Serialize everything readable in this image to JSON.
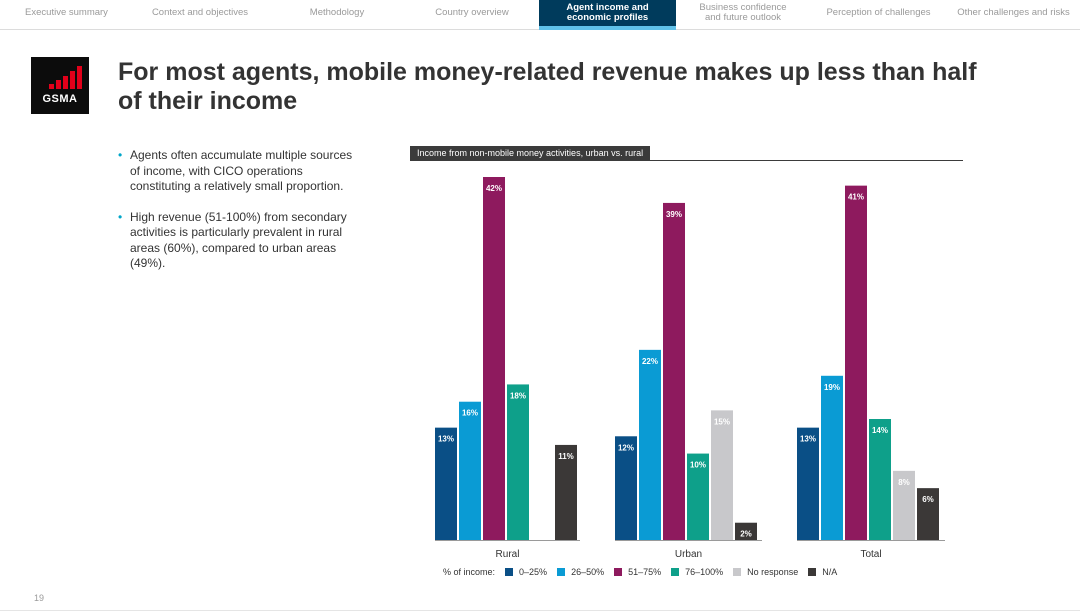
{
  "nav": {
    "tabs": [
      {
        "label": "Executive summary",
        "active": false
      },
      {
        "label": "Context and objectives",
        "active": false
      },
      {
        "label": "Methodology",
        "active": false
      },
      {
        "label": "Country overview",
        "active": false
      },
      {
        "label": "Agent income and\neconomic profiles",
        "active": true
      },
      {
        "label": "Business confidence\nand future outlook",
        "active": false
      },
      {
        "label": "Perception of challenges",
        "active": false
      },
      {
        "label": "Other challenges and risks",
        "active": false
      }
    ]
  },
  "logo": {
    "text": "GSMA",
    "accent_color": "#e2001a"
  },
  "title": "For most agents, mobile money-related revenue makes up less than half of their income",
  "bullets": [
    "Agents often accumulate multiple sources of income, with CICO operations constituting a relatively small proportion.",
    "High revenue (51-100%) from secondary activities is particularly prevalent in rural areas (60%), compared to urban areas (49%)."
  ],
  "chart_data": {
    "type": "bar",
    "title": "Income from non-mobile money activities, urban vs. rural",
    "categories": [
      "Rural",
      "Urban",
      "Total"
    ],
    "ylim": [
      0,
      42
    ],
    "series": [
      {
        "name": "0–25%",
        "color": "#0a4f86",
        "values": [
          13,
          12,
          13
        ]
      },
      {
        "name": "26–50%",
        "color": "#0a9bd4",
        "values": [
          16,
          22,
          19
        ]
      },
      {
        "name": "51–75%",
        "color": "#8e1a5e",
        "values": [
          42,
          39,
          41
        ]
      },
      {
        "name": "76–100%",
        "color": "#0ea08a",
        "values": [
          18,
          10,
          14
        ]
      },
      {
        "name": "No response",
        "color": "#c8c8cb",
        "values": [
          null,
          15,
          8
        ]
      },
      {
        "name": "N/A",
        "color": "#3b3837",
        "values": [
          11,
          2,
          6
        ]
      }
    ],
    "value_suffix": "%",
    "legend_label": "% of income:"
  },
  "page_number": "19"
}
